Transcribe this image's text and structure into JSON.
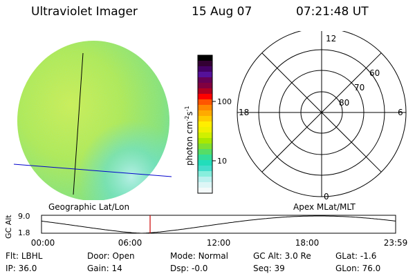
{
  "header": {
    "title": "Ultraviolet Imager",
    "date": "15 Aug 07",
    "time": "07:21:48 UT"
  },
  "colorbar": {
    "unit_label": "photon cm",
    "unit_exp": "-2",
    "unit_s": "s",
    "unit_s_exp": "-1",
    "ticks": [
      {
        "label": "100",
        "value": 100
      },
      {
        "label": "10",
        "value": 10
      }
    ],
    "colors": [
      "#000000",
      "#330033",
      "#440066",
      "#551199",
      "#660055",
      "#800040",
      "#b00020",
      "#ff0000",
      "#ff5500",
      "#ff8800",
      "#ffaa00",
      "#ffcc00",
      "#ffee00",
      "#f0f000",
      "#d0f000",
      "#a8e800",
      "#80e030",
      "#55dd66",
      "#33dd99",
      "#22ddbb",
      "#44ddcc",
      "#88eedd",
      "#bbf0ee",
      "#ddf6f6",
      "#f4fafa"
    ]
  },
  "globe_caption": "Geographic Lat/Lon",
  "polar": {
    "caption": "Apex MLat/MLT",
    "mlt_labels": {
      "top": "12",
      "bottom": "0",
      "left": "18",
      "right": "6"
    },
    "lat_labels": [
      "60",
      "70",
      "80"
    ]
  },
  "altitude_plot": {
    "ylabel": "GC Alt",
    "yticks": [
      "9.0",
      "1.8"
    ],
    "xticks": [
      "00:00",
      "06:00",
      "12:00",
      "18:00",
      "23:59"
    ],
    "current_time_hours": 7.36,
    "marker_color": "#cc0000"
  },
  "info": {
    "row1": [
      {
        "key": "Flt:",
        "value": "LBHL"
      },
      {
        "key": "Door:",
        "value": "Open"
      },
      {
        "key": "Mode:",
        "value": "Normal"
      },
      {
        "key": "GC Alt:",
        "value": "3.0 Re"
      },
      {
        "key": "GLat:",
        "value": "-1.6"
      }
    ],
    "row2": [
      {
        "key": "IP:",
        "value": "36.0"
      },
      {
        "key": "Gain:",
        "value": "14"
      },
      {
        "key": "Dsp:",
        "value": "-0.0"
      },
      {
        "key": "Seq:",
        "value": "39"
      },
      {
        "key": "GLon:",
        "value": "76.0"
      }
    ]
  }
}
